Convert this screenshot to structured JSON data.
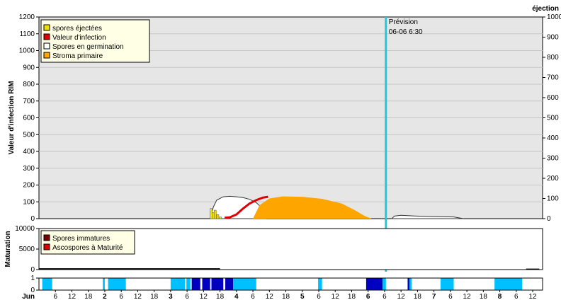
{
  "chart_data": [
    {
      "type": "area",
      "title": "",
      "ylabel": "Valeur d'infection RIM",
      "ylabel_right": "éjection",
      "ylim": [
        0,
        1200
      ],
      "yticks": [
        0,
        100,
        200,
        300,
        400,
        500,
        600,
        700,
        800,
        900,
        1000,
        1100,
        1200
      ],
      "ylim_right": [
        0,
        1000
      ],
      "yticks_right": [
        0,
        100,
        200,
        300,
        400,
        500,
        600,
        700,
        800,
        900,
        1000
      ],
      "grid": true,
      "legend_position": "top-left",
      "forecast": {
        "label": "Prévision",
        "datetime": "06-06 6:30",
        "day": 6.27
      },
      "legend": [
        {
          "name": "spores éjectées",
          "color": "#f0e000"
        },
        {
          "name": "Valeur d'infection",
          "color": "#e00000"
        },
        {
          "name": "Spores en germination",
          "color": "#ffffff"
        },
        {
          "name": "Stroma primaire",
          "color": "#ffa500"
        }
      ],
      "series": [
        {
          "name": "Spores en germination",
          "color": "#ffffff",
          "x": [
            3.6,
            3.65,
            3.7,
            3.8,
            3.9,
            4.0,
            4.1,
            4.2,
            4.3,
            4.4,
            4.45
          ],
          "y": [
            0,
            70,
            110,
            130,
            133,
            130,
            125,
            115,
            95,
            60,
            0
          ]
        },
        {
          "name": "Stroma primaire",
          "color": "#ffa500",
          "x": [
            4.25,
            4.35,
            4.5,
            4.7,
            5.0,
            5.3,
            5.6,
            5.8,
            5.95,
            6.05
          ],
          "y": [
            0,
            80,
            120,
            132,
            130,
            118,
            90,
            50,
            15,
            0
          ]
        },
        {
          "name": "Valeur d'infection",
          "color": "#e00000",
          "x": [
            3.82,
            3.9,
            4.0,
            4.1,
            4.2,
            4.3,
            4.4,
            4.48
          ],
          "y": [
            5,
            8,
            25,
            60,
            90,
            110,
            125,
            130
          ]
        },
        {
          "name": "spores éjectées",
          "color": "#f0e000",
          "axis": "right",
          "x": [
            3.6,
            3.63,
            3.66,
            3.7,
            3.74
          ],
          "y": [
            50,
            30,
            42,
            20,
            8
          ]
        },
        {
          "name": "Spores en germination (2)",
          "color": "#ffffff",
          "x": [
            6.36,
            6.4,
            6.5,
            6.7,
            7.0,
            7.3,
            7.45
          ],
          "y": [
            0,
            15,
            20,
            16,
            12,
            10,
            0
          ]
        }
      ]
    },
    {
      "type": "area",
      "ylabel": "Maturation",
      "ylim": [
        0,
        10000
      ],
      "yticks": [
        0,
        5000,
        10000
      ],
      "legend_position": "top-left",
      "legend": [
        {
          "name": "Spores immatures",
          "color": "#7a0000"
        },
        {
          "name": "Ascospores à Maturité",
          "color": "#e00000"
        }
      ],
      "series": [
        {
          "name": "Spores immatures",
          "color": "#000000",
          "x": [
            1.0,
            2.0,
            3.0,
            3.75
          ],
          "y": [
            150,
            150,
            150,
            150
          ]
        }
      ]
    },
    {
      "type": "bar",
      "ylim": [
        0,
        1
      ],
      "yticks": [
        0,
        1
      ],
      "x_label_first": "Jun",
      "xticks": [
        {
          "day": 1.25,
          "label": "6"
        },
        {
          "day": 1.5,
          "label": "12"
        },
        {
          "day": 1.75,
          "label": "18"
        },
        {
          "day": 2.0,
          "label": "2",
          "bold": true
        },
        {
          "day": 2.25,
          "label": "6"
        },
        {
          "day": 2.5,
          "label": "12"
        },
        {
          "day": 2.75,
          "label": "18"
        },
        {
          "day": 3.0,
          "label": "3",
          "bold": true
        },
        {
          "day": 3.25,
          "label": "6"
        },
        {
          "day": 3.5,
          "label": "12"
        },
        {
          "day": 3.75,
          "label": "18"
        },
        {
          "day": 4.0,
          "label": "4",
          "bold": true
        },
        {
          "day": 4.25,
          "label": "6"
        },
        {
          "day": 4.5,
          "label": "12"
        },
        {
          "day": 4.75,
          "label": "18"
        },
        {
          "day": 5.0,
          "label": "5",
          "bold": true
        },
        {
          "day": 5.25,
          "label": "6"
        },
        {
          "day": 5.5,
          "label": "12"
        },
        {
          "day": 5.75,
          "label": "18"
        },
        {
          "day": 6.0,
          "label": "6",
          "bold": true
        },
        {
          "day": 6.25,
          "label": "6"
        },
        {
          "day": 6.5,
          "label": "12"
        },
        {
          "day": 6.75,
          "label": "18"
        },
        {
          "day": 7.0,
          "label": "7",
          "bold": true
        },
        {
          "day": 7.25,
          "label": "6"
        },
        {
          "day": 7.5,
          "label": "12"
        },
        {
          "day": 7.75,
          "label": "18"
        },
        {
          "day": 8.0,
          "label": "8",
          "bold": true
        },
        {
          "day": 8.25,
          "label": "6"
        },
        {
          "day": 8.5,
          "label": "12"
        }
      ],
      "segments": [
        {
          "start": 1.05,
          "end": 1.2,
          "color": "#00c0ff"
        },
        {
          "start": 1.97,
          "end": 2.0,
          "color": "#00c0ff"
        },
        {
          "start": 2.05,
          "end": 2.32,
          "color": "#00c0ff"
        },
        {
          "start": 3.0,
          "end": 3.22,
          "color": "#00c0ff"
        },
        {
          "start": 3.24,
          "end": 3.3,
          "color": "#00c0ff"
        },
        {
          "start": 3.32,
          "end": 3.45,
          "color": "#0000c0"
        },
        {
          "start": 3.48,
          "end": 3.6,
          "color": "#0000c0"
        },
        {
          "start": 3.62,
          "end": 3.8,
          "color": "#0000c0"
        },
        {
          "start": 3.83,
          "end": 3.95,
          "color": "#0000c0"
        },
        {
          "start": 3.95,
          "end": 4.3,
          "color": "#00c0ff"
        },
        {
          "start": 5.24,
          "end": 5.3,
          "color": "#00c0ff"
        },
        {
          "start": 5.97,
          "end": 6.22,
          "color": "#0000c0"
        },
        {
          "start": 6.22,
          "end": 6.27,
          "color": "#00c0ff"
        },
        {
          "start": 6.6,
          "end": 6.63,
          "color": "#0000c0"
        },
        {
          "start": 6.63,
          "end": 6.66,
          "color": "#00c0ff"
        },
        {
          "start": 7.1,
          "end": 7.3,
          "color": "#00c0ff"
        },
        {
          "start": 7.92,
          "end": 8.34,
          "color": "#00c0ff"
        }
      ]
    }
  ]
}
